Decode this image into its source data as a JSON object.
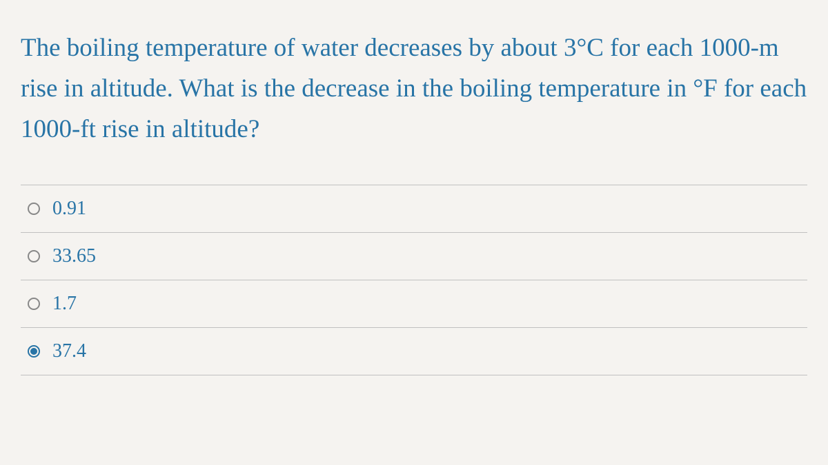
{
  "question": {
    "text": "The boiling temperature of water decreases by about 3°C for each 1000-m rise in altitude. What is the decrease in the boiling temperature in °F for each 1000-ft rise in altitude?",
    "text_color": "#2874a6",
    "font_size": 37
  },
  "options": [
    {
      "label": "0.91",
      "selected": false
    },
    {
      "label": "33.65",
      "selected": false
    },
    {
      "label": "1.7",
      "selected": false
    },
    {
      "label": "37.4",
      "selected": true
    }
  ],
  "colors": {
    "background": "#f5f3f0",
    "border": "#c0c0c0",
    "radio_border": "#888888",
    "accent": "#2874a6"
  }
}
